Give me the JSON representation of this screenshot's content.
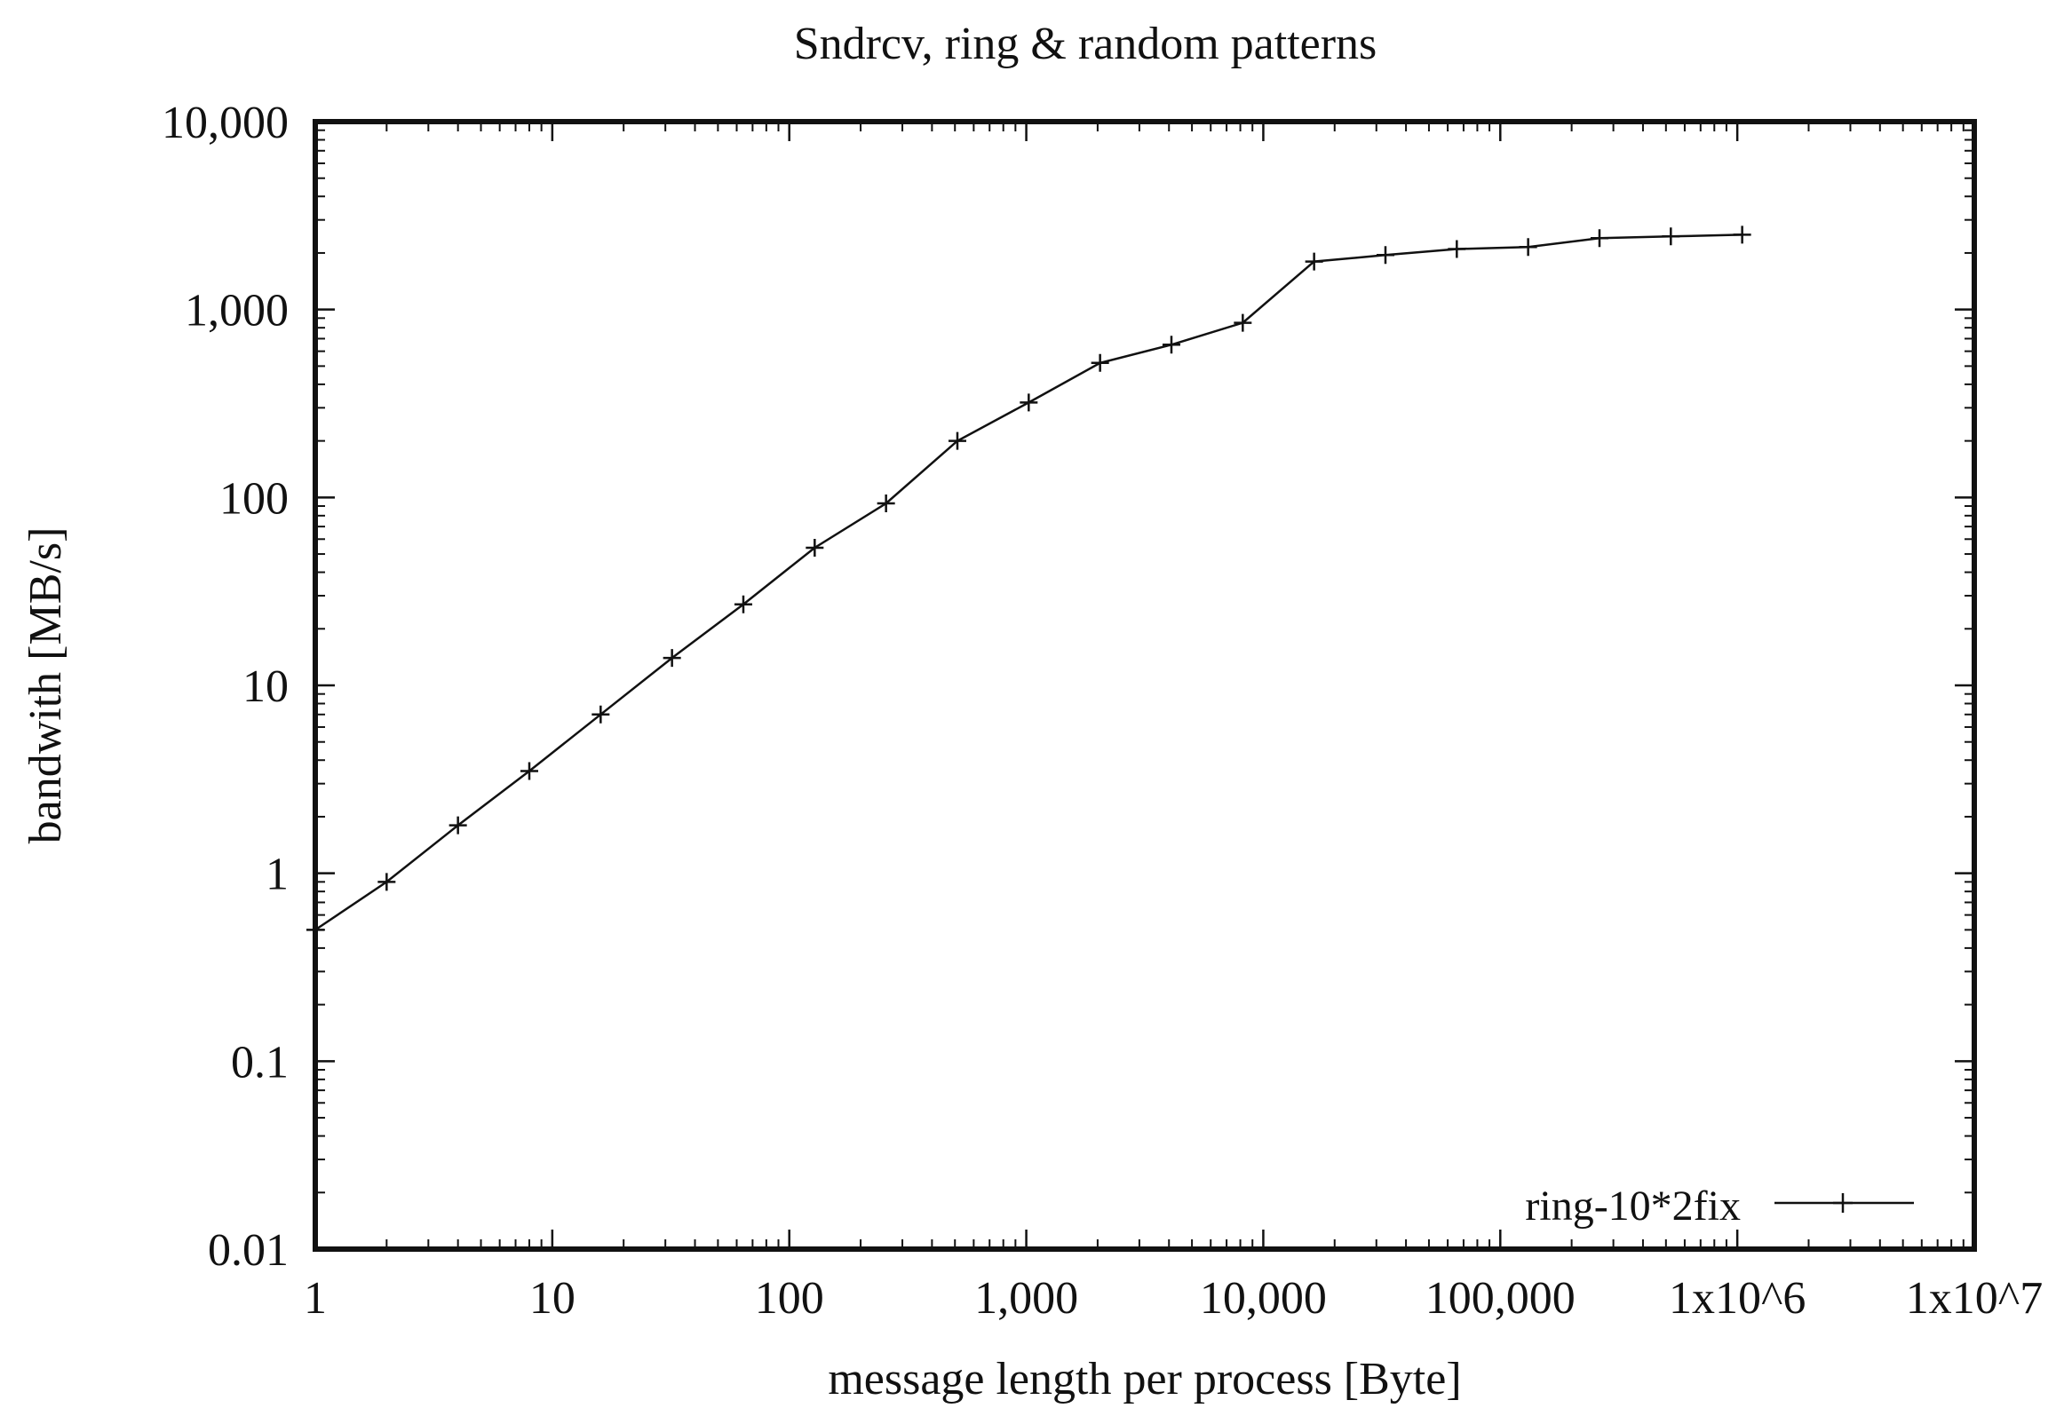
{
  "chart_data": {
    "type": "line",
    "title": "Sndrcv, ring & random patterns",
    "xlabel": "message length per process [Byte]",
    "ylabel": "bandwith [MB/s]",
    "x_scale": "log",
    "y_scale": "log",
    "xlim": [
      1,
      10000000
    ],
    "ylim": [
      0.01,
      10000
    ],
    "x_ticks": [
      {
        "value": 1,
        "label": "1"
      },
      {
        "value": 10,
        "label": "10"
      },
      {
        "value": 100,
        "label": "100"
      },
      {
        "value": 1000,
        "label": "1,000"
      },
      {
        "value": 10000,
        "label": "10,000"
      },
      {
        "value": 100000,
        "label": "100,000"
      },
      {
        "value": 1000000,
        "label": "1x10^6"
      },
      {
        "value": 10000000,
        "label": "1x10^7"
      }
    ],
    "y_ticks": [
      {
        "value": 0.01,
        "label": "0.01"
      },
      {
        "value": 0.1,
        "label": "0.1"
      },
      {
        "value": 1,
        "label": "1"
      },
      {
        "value": 10,
        "label": "10"
      },
      {
        "value": 100,
        "label": "100"
      },
      {
        "value": 1000,
        "label": "1,000"
      },
      {
        "value": 10000,
        "label": "10,000"
      }
    ],
    "grid": false,
    "legend_position": "bottom-right",
    "series": [
      {
        "name": "ring-10*2fix",
        "color": "#111111",
        "marker": "plus",
        "x": [
          1,
          2,
          4,
          8,
          16,
          32,
          64,
          128,
          256,
          512,
          1024,
          2048,
          4096,
          8192,
          16384,
          32768,
          65536,
          131072,
          262144,
          524288,
          1048576
        ],
        "y": [
          0.5,
          0.9,
          1.8,
          3.5,
          7,
          14,
          27,
          54,
          93,
          200,
          320,
          520,
          650,
          850,
          1800,
          1950,
          2100,
          2150,
          2400,
          2450,
          2500
        ]
      }
    ]
  }
}
